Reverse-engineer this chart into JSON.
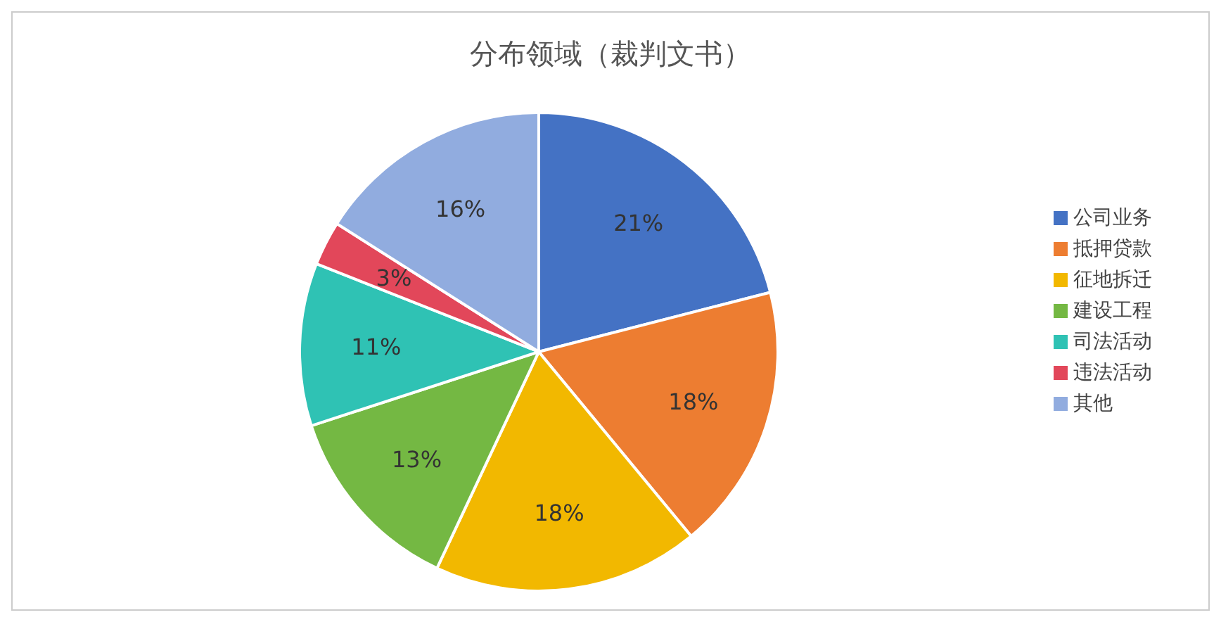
{
  "chart_data": {
    "type": "pie",
    "title": "分布领域（裁判文书）",
    "categories": [
      "公司业务",
      "抵押贷款",
      "征地拆迁",
      "建设工程",
      "司法活动",
      "违法活动",
      "其他"
    ],
    "values": [
      21,
      18,
      18,
      13,
      11,
      3,
      16
    ],
    "colors": [
      "#4472c4",
      "#ed7d31",
      "#f2b800",
      "#74b843",
      "#2fc2b4",
      "#e2475a",
      "#91acdf"
    ],
    "value_labels": [
      "21%",
      "18%",
      "18%",
      "13%",
      "11%",
      "3%",
      "16%"
    ],
    "legend": "right"
  }
}
